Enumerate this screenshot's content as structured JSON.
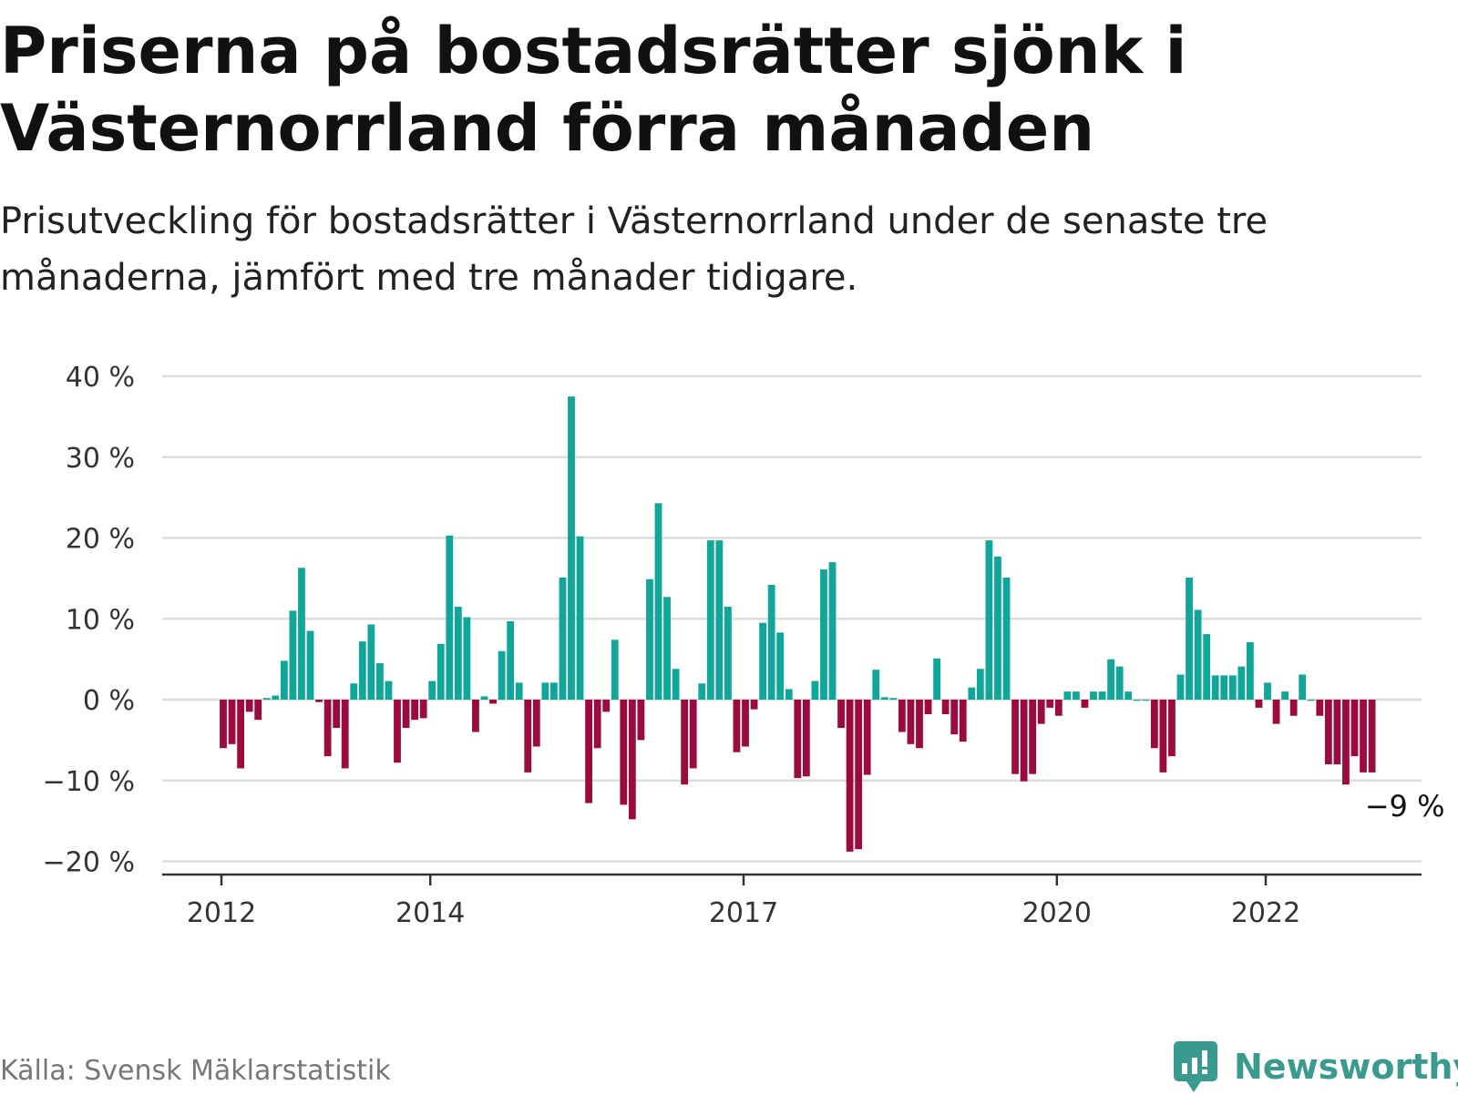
{
  "title": "Priserna på bostadsrätter sjönk i Västernorrland förra månaden",
  "subtitle": "Prisutveckling för bostadsrätter i Västernorrland under de senaste tre månaderna, jämfört med tre månader tidigare.",
  "source": "Källa: Svensk Mäklarstatistik",
  "brand": "Newsworthy",
  "colors": {
    "positive": "#10a69a",
    "negative": "#9b0b3e",
    "grid": "#dddddd",
    "axis": "#333333",
    "brand": "#3a9a8e"
  },
  "chart_data": {
    "type": "bar",
    "x_start": "2012-01",
    "x_step": "month",
    "x_ticks": [
      "2012",
      "2014",
      "2017",
      "2020",
      "2022"
    ],
    "y_ticks": [
      "40 %",
      "30 %",
      "20 %",
      "10 %",
      "0 %",
      "−10 %",
      "−20 %"
    ],
    "ylim": [
      -20,
      40
    ],
    "grid": true,
    "last_label": "−9 %",
    "values": [
      -6,
      -5.5,
      -8.5,
      -1.5,
      -2.5,
      0.2,
      0.5,
      4.8,
      11,
      16.3,
      8.5,
      -0.3,
      -7,
      -3.5,
      -8.5,
      2,
      7.2,
      9.3,
      4.5,
      2.3,
      -7.8,
      -3.5,
      -2.5,
      -2.3,
      2.3,
      6.9,
      20.3,
      11.5,
      10.2,
      -4,
      0.4,
      -0.5,
      6,
      9.7,
      2.1,
      -9,
      -5.8,
      2.1,
      2.1,
      15.1,
      37.5,
      20.2,
      -12.8,
      -6,
      -1.5,
      7.4,
      -13,
      -14.8,
      -5,
      14.9,
      24.3,
      12.7,
      3.8,
      -10.5,
      -8.5,
      2,
      19.7,
      19.7,
      11.5,
      -6.5,
      -5.8,
      -1.2,
      9.5,
      14.2,
      8.3,
      1.3,
      -9.7,
      -9.5,
      2.3,
      16.1,
      17,
      -3.5,
      -18.8,
      -18.5,
      -9.3,
      3.7,
      0.3,
      0.2,
      -4,
      -5.5,
      -6,
      -1.8,
      5.1,
      -1.8,
      -4.3,
      -5.2,
      1.5,
      3.8,
      19.7,
      17.7,
      15.1,
      -9.2,
      -10.1,
      -9.2,
      -3,
      -1,
      -2,
      1,
      1,
      -1,
      1,
      1,
      5,
      4.1,
      1,
      0,
      0,
      -6,
      -9,
      -7,
      3.1,
      15.1,
      11.1,
      8.1,
      3,
      3,
      3,
      4.1,
      7.1,
      -1,
      2.1,
      -3,
      1,
      -2,
      3.1,
      0,
      -2,
      -8,
      -8,
      -10.5,
      -7,
      -9,
      -9
    ]
  }
}
